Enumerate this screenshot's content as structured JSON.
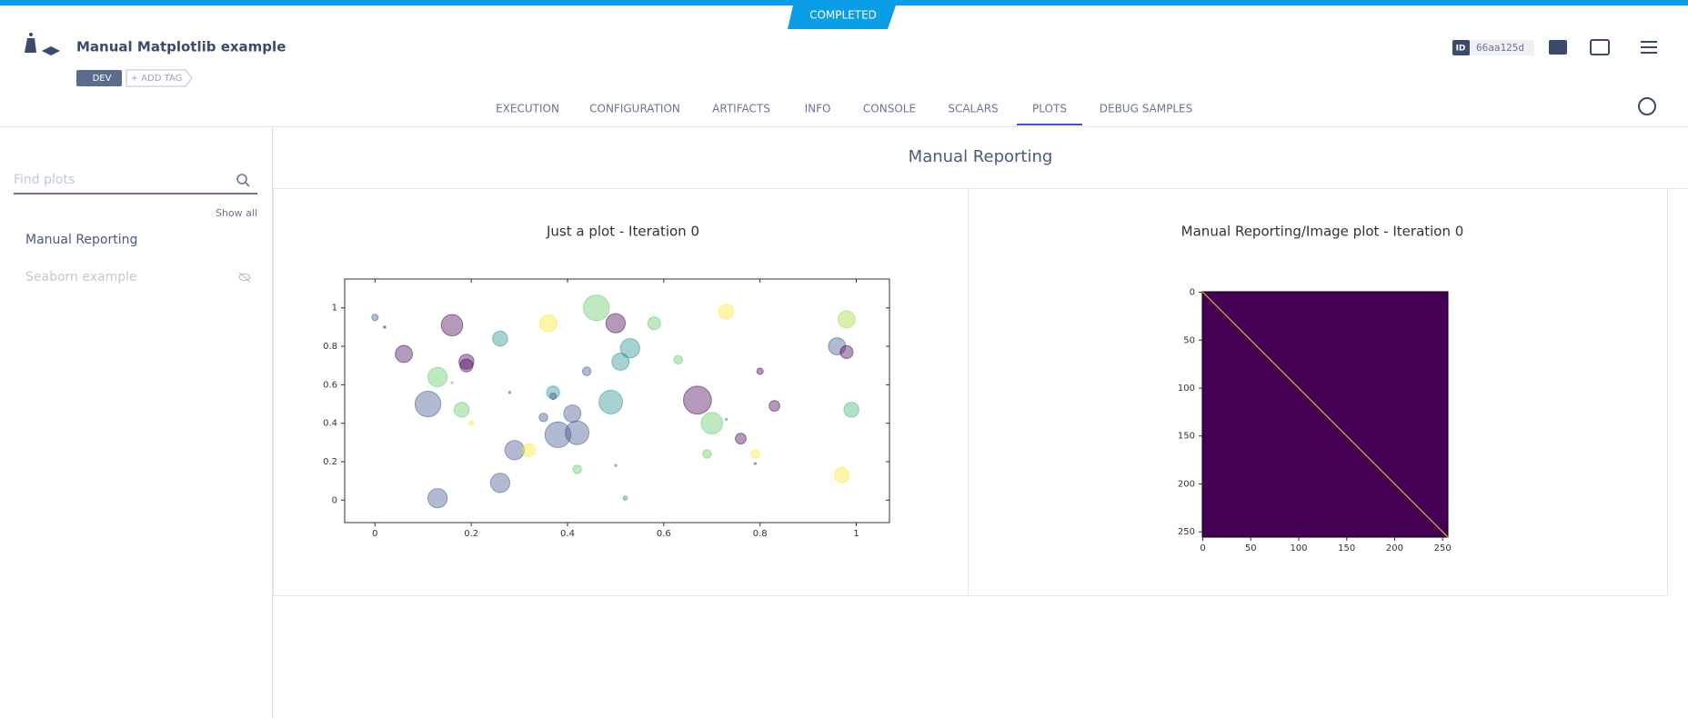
{
  "header": {
    "status": "COMPLETED",
    "title": "Manual Matplotlib example",
    "tag": "DEV",
    "add_tag": "+ ADD TAG",
    "id_label": "ID",
    "id": "66aa125d"
  },
  "tabs": [
    "EXECUTION",
    "CONFIGURATION",
    "ARTIFACTS",
    "INFO",
    "CONSOLE",
    "SCALARS",
    "PLOTS",
    "DEBUG SAMPLES"
  ],
  "active_tab": 6,
  "sidebar": {
    "search_placeholder": "Find plots",
    "show_all": "Show all",
    "items": [
      "Manual Reporting",
      "Seaborn example"
    ]
  },
  "section_title": "Manual Reporting",
  "chart_data": [
    {
      "type": "scatter",
      "title": "Just a plot - Iteration 0",
      "x": [
        0.0,
        0.02,
        0.06,
        0.16,
        0.19,
        0.19,
        0.13,
        0.16,
        0.11,
        0.18,
        0.2,
        0.26,
        0.36,
        0.46,
        0.5,
        0.58,
        0.53,
        0.51,
        0.44,
        0.63,
        0.28,
        0.37,
        0.37,
        0.49,
        0.67,
        0.35,
        0.41,
        0.38,
        0.42,
        0.7,
        0.73,
        0.29,
        0.32,
        0.26,
        0.42,
        0.5,
        0.52,
        0.13,
        0.73,
        0.8,
        0.83,
        0.76,
        0.69,
        0.79,
        0.79,
        0.98,
        0.96,
        0.98,
        0.99,
        0.97
      ],
      "y": [
        0.95,
        0.9,
        0.76,
        0.91,
        0.72,
        0.7,
        0.64,
        0.61,
        0.5,
        0.47,
        0.4,
        0.84,
        0.92,
        1.0,
        0.92,
        0.92,
        0.79,
        0.72,
        0.67,
        0.73,
        0.56,
        0.56,
        0.54,
        0.51,
        0.52,
        0.43,
        0.45,
        0.34,
        0.35,
        0.4,
        0.42,
        0.26,
        0.26,
        0.09,
        0.16,
        0.18,
        0.01,
        0.01,
        0.98,
        0.67,
        0.49,
        0.32,
        0.24,
        0.24,
        0.19,
        0.94,
        0.8,
        0.77,
        0.47,
        0.13
      ],
      "sizes": [
        3,
        1,
        8,
        10,
        7,
        6,
        9,
        1,
        12,
        7,
        2,
        7,
        8,
        12,
        9,
        6,
        9,
        8,
        4,
        4,
        1,
        6,
        3,
        11,
        13,
        4,
        8,
        12,
        11,
        10,
        1,
        9,
        6,
        9,
        4,
        1,
        2,
        9,
        7,
        3,
        5,
        5,
        4,
        4,
        1,
        8,
        8,
        6,
        7,
        7
      ],
      "colors": [
        "#3b528b",
        "#440154",
        "#440154",
        "#440154",
        "#440154",
        "#440154",
        "#5ec962",
        "#5ec962",
        "#3b528b",
        "#5ec962",
        "#fde725",
        "#21918c",
        "#fde725",
        "#5ec962",
        "#440154",
        "#5ec962",
        "#21918c",
        "#21918c",
        "#3b528b",
        "#5ec962",
        "#3b528b",
        "#21918c",
        "#3b528b",
        "#21918c",
        "#440154",
        "#3b528b",
        "#3b528b",
        "#3b528b",
        "#3b528b",
        "#5ec962",
        "#21918c",
        "#3b528b",
        "#fde725",
        "#3b528b",
        "#5ec962",
        "#21918c",
        "#21918c",
        "#3b528b",
        "#fde725",
        "#440154",
        "#440154",
        "#440154",
        "#5ec962",
        "#fde725",
        "#3b528b",
        "#a0da39",
        "#3b528b",
        "#440154",
        "#35b779",
        "#fde725"
      ],
      "xlim": [
        -0.063,
        1.069
      ],
      "ylim": [
        -0.117,
        1.15
      ],
      "xticks": [
        0,
        0.2,
        0.4,
        0.6,
        0.8,
        1
      ],
      "yticks": [
        0,
        0.2,
        0.4,
        0.6,
        0.8,
        1
      ]
    },
    {
      "type": "image",
      "title": "Manual Reporting/Image plot - Iteration 0",
      "color": "#440154",
      "line_color": "#f0a830",
      "xlim": [
        -0.5,
        255.5
      ],
      "ylim": [
        255.5,
        -0.5
      ],
      "xticks": [
        0,
        50,
        100,
        150,
        200,
        250
      ],
      "yticks": [
        0,
        50,
        100,
        150,
        200,
        250
      ]
    }
  ]
}
